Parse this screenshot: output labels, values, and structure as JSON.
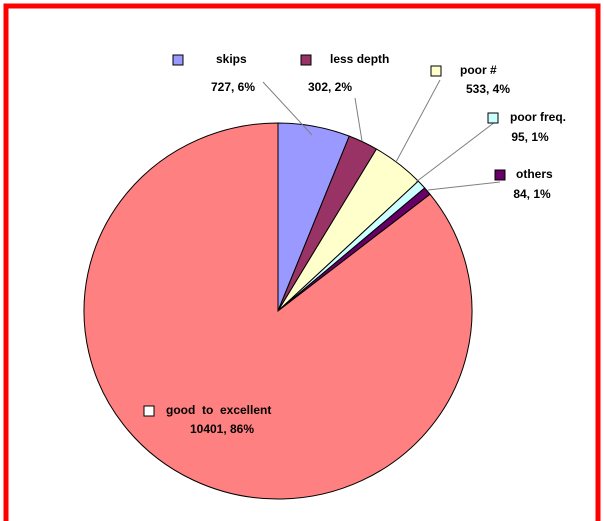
{
  "chart_data": {
    "type": "pie",
    "categories": [
      "skips",
      "less depth",
      "poor #",
      "poor freq.",
      "others",
      "good  to  excellent"
    ],
    "values": [
      727,
      302,
      533,
      95,
      84,
      10401
    ],
    "value_labels": [
      "727, 6%",
      "302, 2%",
      "533, 4%",
      "95, 1%",
      "84, 1%",
      "10401, 86%"
    ],
    "colors": [
      "#9999ff",
      "#993366",
      "#ffffcc",
      "#ccffff",
      "#660066",
      "#ff8080"
    ]
  }
}
